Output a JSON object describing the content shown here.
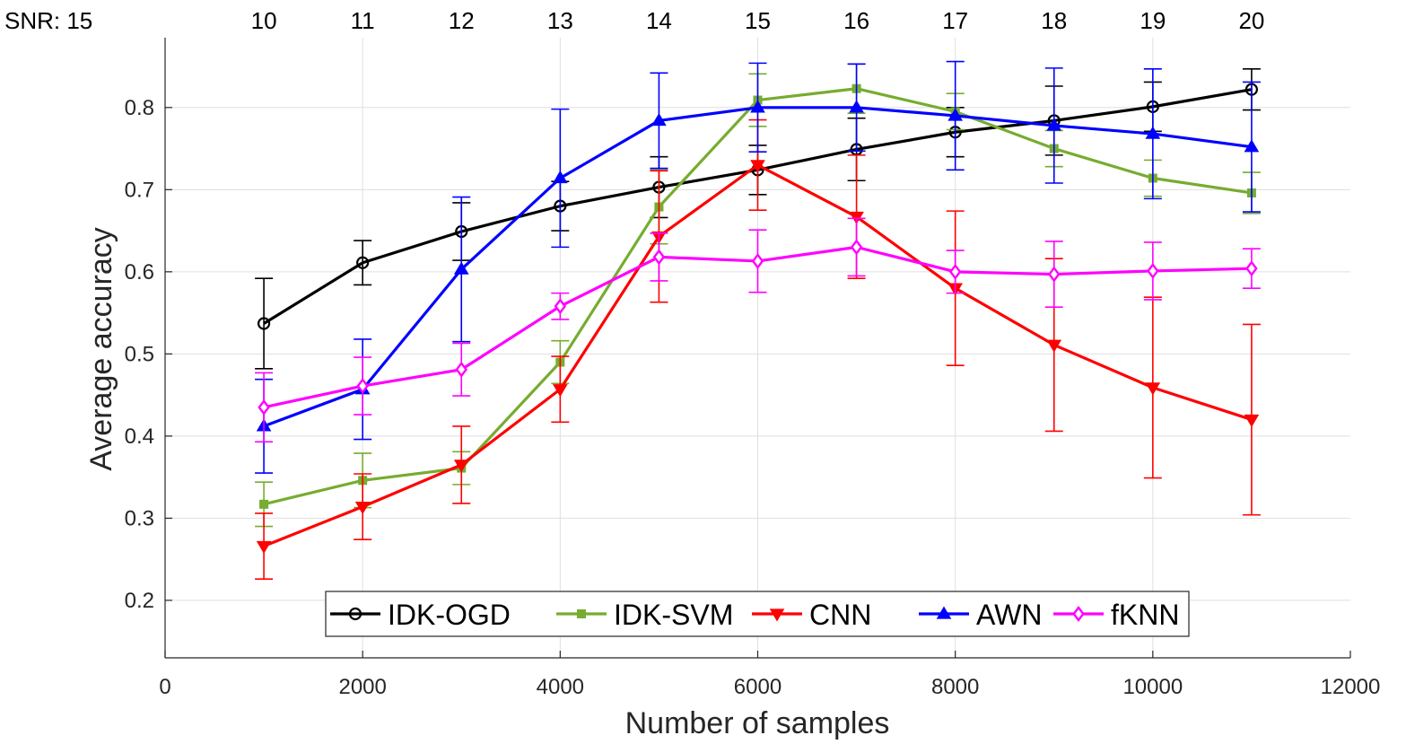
{
  "chart_data": {
    "type": "line",
    "title": "",
    "xlabel": "Number of samples",
    "ylabel": "Average accuracy",
    "xlim": [
      0,
      12000
    ],
    "ylim": [
      0.13,
      0.885
    ],
    "xticks": [
      0,
      2000,
      4000,
      6000,
      8000,
      10000,
      12000
    ],
    "yticks": [
      0.2,
      0.3,
      0.4,
      0.5,
      0.6,
      0.7,
      0.8
    ],
    "grid": true,
    "top_axis": {
      "label": "SNR: 15",
      "positions": [
        1000,
        2000,
        3000,
        4000,
        5000,
        6000,
        7000,
        8000,
        9000,
        10000,
        11000
      ],
      "tick_labels": [
        "10",
        "11",
        "12",
        "13",
        "14",
        "15",
        "16",
        "17",
        "18",
        "19",
        "20"
      ]
    },
    "legend_position": "bottom-center",
    "x": [
      1000,
      2000,
      3000,
      4000,
      5000,
      6000,
      7000,
      8000,
      9000,
      10000,
      11000
    ],
    "series": [
      {
        "name": "IDK-OGD",
        "color": "#000000",
        "marker": "circle",
        "values": [
          0.537,
          0.611,
          0.649,
          0.68,
          0.703,
          0.724,
          0.749,
          0.77,
          0.784,
          0.801,
          0.822
        ],
        "errors": [
          0.055,
          0.027,
          0.035,
          0.03,
          0.037,
          0.03,
          0.038,
          0.03,
          0.042,
          0.03,
          0.025
        ]
      },
      {
        "name": "IDK-SVM",
        "color": "#77AC30",
        "marker": "square",
        "values": [
          0.317,
          0.346,
          0.361,
          0.49,
          0.679,
          0.809,
          0.823,
          0.795,
          0.75,
          0.714,
          0.696
        ],
        "errors": [
          0.027,
          0.033,
          0.02,
          0.026,
          0.045,
          0.032,
          0.03,
          0.022,
          0.022,
          0.022,
          0.025
        ]
      },
      {
        "name": "CNN",
        "color": "#FF0000",
        "marker": "triangle-down",
        "values": [
          0.266,
          0.314,
          0.365,
          0.457,
          0.643,
          0.73,
          0.667,
          0.58,
          0.511,
          0.459,
          0.42
        ],
        "errors": [
          0.04,
          0.04,
          0.047,
          0.04,
          0.08,
          0.055,
          0.075,
          0.094,
          0.105,
          0.11,
          0.116
        ]
      },
      {
        "name": "AWN",
        "color": "#0000FF",
        "marker": "triangle-up",
        "values": [
          0.412,
          0.457,
          0.603,
          0.714,
          0.784,
          0.8,
          0.8,
          0.79,
          0.778,
          0.768,
          0.752
        ],
        "errors": [
          0.057,
          0.061,
          0.088,
          0.084,
          0.058,
          0.054,
          0.053,
          0.066,
          0.07,
          0.079,
          0.079
        ]
      },
      {
        "name": "fKNN",
        "color": "#FF00FF",
        "marker": "diamond",
        "values": [
          0.435,
          0.461,
          0.481,
          0.558,
          0.618,
          0.613,
          0.63,
          0.6,
          0.597,
          0.601,
          0.604
        ],
        "errors": [
          0.042,
          0.035,
          0.032,
          0.016,
          0.029,
          0.038,
          0.035,
          0.026,
          0.04,
          0.035,
          0.024
        ]
      }
    ]
  }
}
